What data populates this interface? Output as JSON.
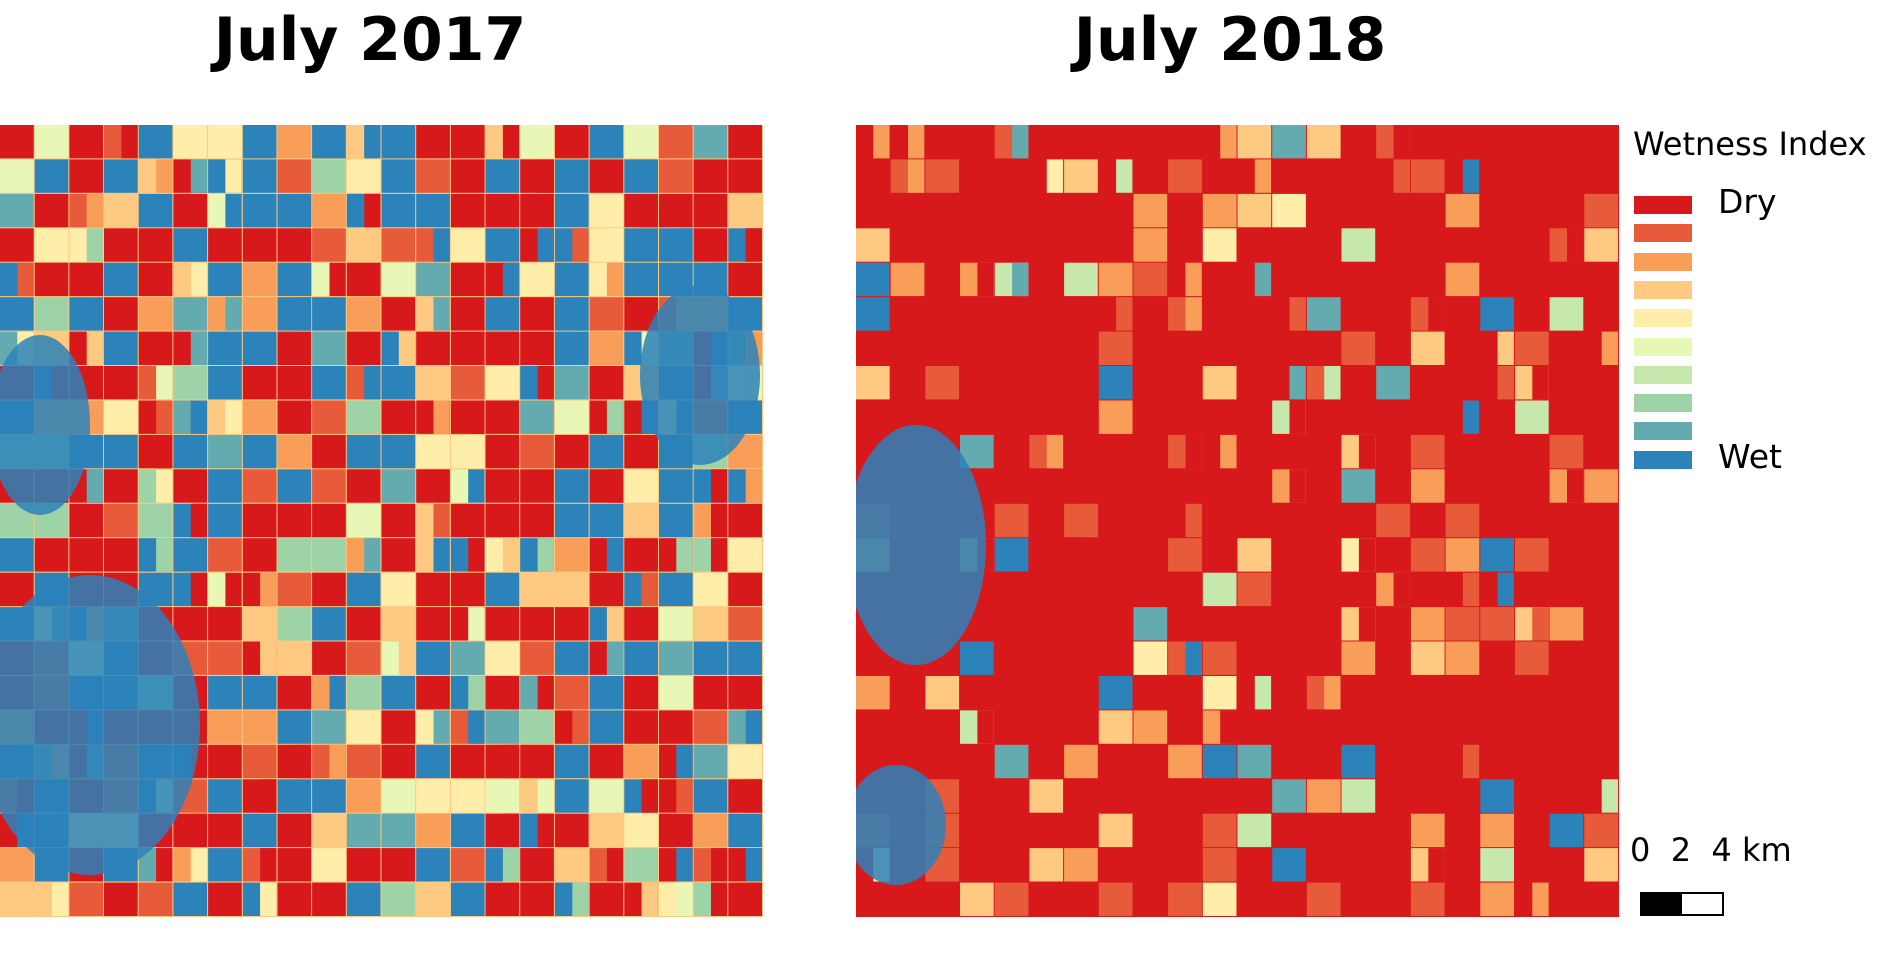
{
  "panels": [
    {
      "title": "July 2017",
      "image": "wetness-index-map-july-2017",
      "seed": 7,
      "palette_bias": "mixed"
    },
    {
      "title": "July 2018",
      "image": "wetness-index-map-july-2018",
      "seed": 19,
      "palette_bias": "dry"
    }
  ],
  "legend": {
    "title": "Wetness Index",
    "classes": [
      {
        "color": "#d7191c",
        "label": "Dry"
      },
      {
        "color": "#e85b3a",
        "label": ""
      },
      {
        "color": "#f99e59",
        "label": ""
      },
      {
        "color": "#fec980",
        "label": ""
      },
      {
        "color": "#ffedaa",
        "label": ""
      },
      {
        "color": "#e8f6b6",
        "label": ""
      },
      {
        "color": "#c7e8ad",
        "label": ""
      },
      {
        "color": "#9dd3a7",
        "label": ""
      },
      {
        "color": "#64abb0",
        "label": ""
      },
      {
        "color": "#2b83ba",
        "label": "Wet"
      }
    ]
  },
  "scalebar": {
    "ticks": [
      "0",
      "2",
      "4 km"
    ]
  }
}
